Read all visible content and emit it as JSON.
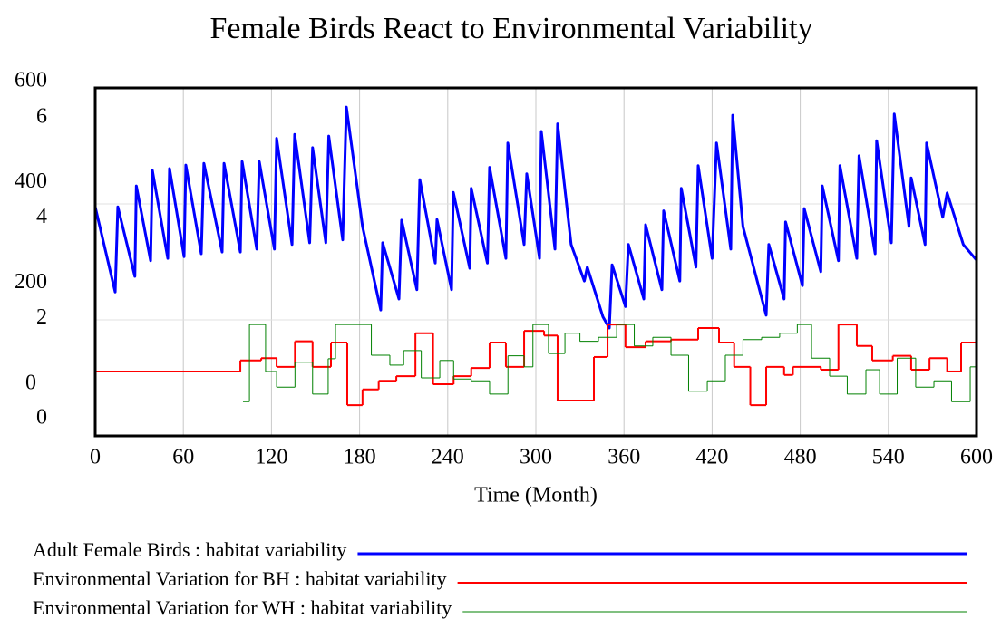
{
  "chart_data": {
    "type": "line",
    "title": "Female Birds React to Environmental Variability",
    "x_label": "Time (Month)",
    "xlim": [
      0,
      600
    ],
    "xticks": [
      0,
      60,
      120,
      180,
      240,
      300,
      360,
      420,
      480,
      540,
      600
    ],
    "ylim": [
      0,
      600
    ],
    "yticks": [
      0,
      200,
      400,
      600
    ],
    "y2lim": [
      0,
      6
    ],
    "y2ticks": [
      0,
      2,
      4,
      6
    ],
    "grid": true,
    "series": [
      {
        "name": "Adult Female Birds : habitat variability",
        "color": "#0000ff",
        "width": 3,
        "step": false,
        "x": [
          0,
          13.6,
          15.4,
          27,
          28,
          37.7,
          38.9,
          49.4,
          50.6,
          60.5,
          61.7,
          72.2,
          74,
          86.4,
          87.7,
          98.8,
          100,
          110,
          111.7,
          122,
          123.5,
          134,
          135.8,
          146,
          148,
          157,
          159,
          168.5,
          171,
          182,
          194.4,
          195.7,
          206.8,
          208.6,
          219,
          221,
          231.5,
          232.7,
          242.6,
          243.8,
          255,
          256,
          267,
          268.5,
          279.6,
          280.9,
          292,
          293.8,
          302.5,
          303.7,
          313,
          314.8,
          324,
          333,
          335,
          345.7,
          350,
          351.9,
          361,
          363,
          373.5,
          374.7,
          385.8,
          387,
          398,
          399,
          409,
          410.5,
          420,
          423,
          432.7,
          434,
          441,
          456.8,
          458.6,
          469,
          470,
          481.5,
          482.7,
          494,
          495,
          506,
          507,
          518.5,
          520,
          531,
          532,
          542,
          544,
          554,
          555.5,
          565,
          566,
          577,
          580,
          591,
          600
        ],
        "values": [
          395,
          248,
          395,
          275,
          431,
          302,
          458,
          306,
          461,
          309,
          467,
          314,
          470,
          317,
          470,
          317,
          473,
          322,
          473,
          322,
          513,
          330,
          520,
          333,
          497,
          333,
          517,
          338,
          567,
          361,
          217,
          333,
          236,
          372,
          252,
          442,
          298,
          373,
          252,
          420,
          289,
          427,
          298,
          463,
          306,
          505,
          330,
          452,
          306,
          525,
          322,
          538,
          330,
          267,
          291,
          205,
          186,
          295,
          223,
          330,
          236,
          364,
          252,
          388,
          267,
          427,
          291,
          466,
          306,
          505,
          322,
          553,
          361,
          208,
          330,
          236,
          369,
          259,
          392,
          283,
          431,
          302,
          466,
          306,
          483,
          314,
          509,
          333,
          555,
          361,
          445,
          330,
          505,
          377,
          419,
          330,
          303
        ]
      },
      {
        "name": "Environmental Variation for BH : habitat variability",
        "color": "#ff0000",
        "width": 2,
        "step": true,
        "axis": "y2",
        "x": [
          0,
          98.8,
          113,
          123.5,
          136,
          148,
          160.5,
          171.6,
          182,
          193,
          205,
          218,
          230,
          244,
          256,
          268.5,
          279.6,
          292,
          305.6,
          314.8,
          339.5,
          348.8,
          361,
          374.7,
          392,
          410.5,
          424.7,
          435,
          446,
          456.8,
          469,
          475,
          494,
          506,
          518.5,
          529,
          543,
          555.5,
          568,
          580,
          589.5,
          600
        ],
        "values": [
          1.11,
          1.3,
          1.34,
          1.19,
          1.63,
          1.19,
          1.61,
          0.53,
          0.8,
          0.95,
          1.03,
          1.77,
          0.89,
          1.03,
          1.17,
          1.61,
          1.19,
          1.81,
          1.73,
          0.61,
          1.36,
          1.92,
          1.53,
          1.63,
          1.66,
          1.86,
          1.61,
          1.19,
          0.53,
          1.19,
          1.05,
          1.19,
          1.14,
          1.92,
          1.55,
          1.3,
          1.38,
          1.14,
          1.34,
          1.11,
          1.61,
          1.61
        ]
      },
      {
        "name": "Environmental Variation for WH : habitat variability",
        "color": "#008000",
        "width": 1,
        "step": true,
        "axis": "y2",
        "x": [
          100.6,
          105,
          116,
          123.5,
          136,
          148,
          158.6,
          163.6,
          188,
          200.6,
          210,
          222,
          234.6,
          244,
          256,
          268.5,
          281,
          292,
          298,
          308.6,
          319.8,
          330,
          342.6,
          355,
          367,
          379.6,
          392,
          404,
          416.7,
          429,
          441,
          453.7,
          466,
          478,
          487.7,
          500,
          512,
          524.7,
          534,
          546,
          558.6,
          571,
          583,
          595.7,
          600
        ],
        "values": [
          0.59,
          1.92,
          1.11,
          0.84,
          1.27,
          0.72,
          1.33,
          1.92,
          1.39,
          1.22,
          1.47,
          1.0,
          1.3,
          0.98,
          0.95,
          0.72,
          1.38,
          1.19,
          1.92,
          1.42,
          1.77,
          1.63,
          1.7,
          1.92,
          1.55,
          1.7,
          1.39,
          0.77,
          0.95,
          1.39,
          1.66,
          1.7,
          1.77,
          1.92,
          1.34,
          1.03,
          0.72,
          1.14,
          0.72,
          1.34,
          0.84,
          0.95,
          0.59,
          1.19,
          1.19
        ]
      }
    ]
  }
}
